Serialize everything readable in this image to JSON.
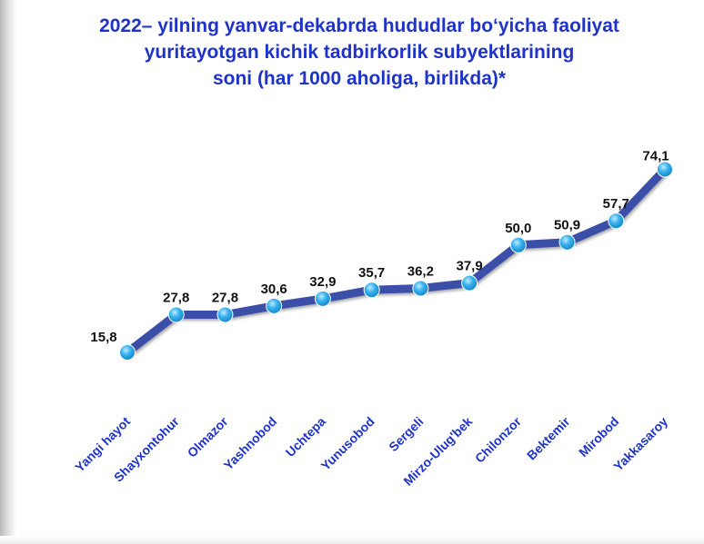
{
  "title_lines": [
    "2022– yilning yanvar-dekabrda hududlar bo‘yicha faoliyat",
    "yuritayotgan kichik tadbirkorlik subyektlarining",
    "soni (har 1000 aholiga, birlikda)*"
  ],
  "colors": {
    "title": "#1f33c8",
    "line": "#3b4fa8",
    "marker": "#29a8e8",
    "category_label": "#1f33c8",
    "value_label": "#111111"
  },
  "chart_data": {
    "type": "line",
    "title": "2022– yilning yanvar-dekabrda hududlar bo‘yicha faoliyat yuritayotgan kichik tadbirkorlik subyektlarining soni (har 1000 aholiga, birlikda)*",
    "categories": [
      "Yangi hayot",
      "Shayxontohur",
      "Olmazor",
      "Yashnobod",
      "Uchtepa",
      "Yunusobod",
      "Sergeli",
      "Mirzo-Ulug'bek",
      "Chilonzor",
      "Bektemir",
      "Mirobod",
      "Yakkasaroy"
    ],
    "values": [
      15.8,
      27.8,
      27.8,
      30.6,
      32.9,
      35.7,
      36.2,
      37.9,
      50.0,
      50.9,
      57.7,
      74.1
    ],
    "value_labels": [
      "15,8",
      "27,8",
      "27,8",
      "30,6",
      "32,9",
      "35,7",
      "36,2",
      "37,9",
      "50,0",
      "50,9",
      "57,7",
      "74,1"
    ],
    "xlabel": "",
    "ylabel": "",
    "grid": false,
    "legend": "none"
  }
}
